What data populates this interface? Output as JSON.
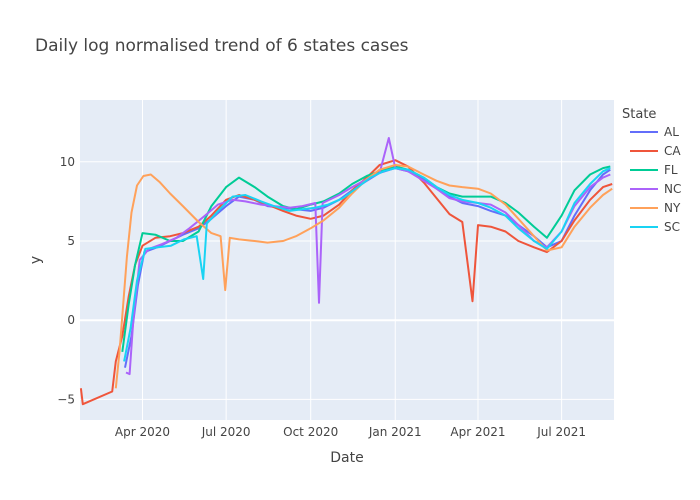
{
  "chart_data": {
    "type": "line",
    "title": "Daily log normalised trend of 6 states cases",
    "xlabel": "Date",
    "ylabel": "y",
    "x_range": [
      "2020-01-24",
      "2021-08-27"
    ],
    "ylim": [
      -6.3,
      13.9
    ],
    "x_ticks": [
      {
        "date": "2020-04-01",
        "label": "Apr 2020"
      },
      {
        "date": "2020-07-01",
        "label": "Jul 2020"
      },
      {
        "date": "2020-10-01",
        "label": "Oct 2020"
      },
      {
        "date": "2021-01-01",
        "label": "Jan 2021"
      },
      {
        "date": "2021-04-01",
        "label": "Apr 2021"
      },
      {
        "date": "2021-07-01",
        "label": "Jul 2021"
      }
    ],
    "y_ticks": [
      {
        "value": -5,
        "label": "−5"
      },
      {
        "value": 0,
        "label": "0"
      },
      {
        "value": 5,
        "label": "5"
      },
      {
        "value": 10,
        "label": "10"
      }
    ],
    "grid": true,
    "legend": {
      "title": "State",
      "position": "right"
    },
    "series": [
      {
        "name": "AL",
        "color": "#636efa",
        "points": [
          [
            "2020-03-13",
            -3.0
          ],
          [
            "2020-03-20",
            -1.0
          ],
          [
            "2020-03-27",
            2.2
          ],
          [
            "2020-04-03",
            4.3
          ],
          [
            "2020-04-17",
            4.6
          ],
          [
            "2020-05-01",
            5.0
          ],
          [
            "2020-05-15",
            5.4
          ],
          [
            "2020-06-01",
            5.8
          ],
          [
            "2020-06-15",
            6.4
          ],
          [
            "2020-07-01",
            7.2
          ],
          [
            "2020-07-15",
            7.8
          ],
          [
            "2020-08-01",
            7.6
          ],
          [
            "2020-08-15",
            7.2
          ],
          [
            "2020-09-01",
            7.1
          ],
          [
            "2020-09-15",
            7.0
          ],
          [
            "2020-10-01",
            6.9
          ],
          [
            "2020-10-15",
            7.1
          ],
          [
            "2020-11-01",
            7.6
          ],
          [
            "2020-11-15",
            8.2
          ],
          [
            "2020-12-01",
            8.8
          ],
          [
            "2020-12-15",
            9.3
          ],
          [
            "2021-01-01",
            9.6
          ],
          [
            "2021-01-15",
            9.4
          ],
          [
            "2021-02-01",
            8.9
          ],
          [
            "2021-02-15",
            8.3
          ],
          [
            "2021-03-01",
            7.8
          ],
          [
            "2021-03-15",
            7.4
          ],
          [
            "2021-04-01",
            7.2
          ],
          [
            "2021-04-15",
            6.9
          ],
          [
            "2021-05-01",
            6.6
          ],
          [
            "2021-05-15",
            6.0
          ],
          [
            "2021-06-01",
            5.3
          ],
          [
            "2021-06-15",
            4.6
          ],
          [
            "2021-07-01",
            5.0
          ],
          [
            "2021-07-15",
            6.6
          ],
          [
            "2021-08-01",
            8.2
          ],
          [
            "2021-08-15",
            9.2
          ],
          [
            "2021-08-23",
            9.5
          ]
        ]
      },
      {
        "name": "CA",
        "color": "#ef553b",
        "points": [
          [
            "2020-01-25",
            -4.3
          ],
          [
            "2020-01-27",
            -5.3
          ],
          [
            "2020-02-28",
            -4.5
          ],
          [
            "2020-03-03",
            -2.6
          ],
          [
            "2020-03-10",
            -1.0
          ],
          [
            "2020-03-17",
            1.5
          ],
          [
            "2020-03-24",
            3.5
          ],
          [
            "2020-04-01",
            4.7
          ],
          [
            "2020-04-15",
            5.2
          ],
          [
            "2020-05-01",
            5.3
          ],
          [
            "2020-05-15",
            5.5
          ],
          [
            "2020-06-01",
            5.9
          ],
          [
            "2020-06-15",
            6.6
          ],
          [
            "2020-07-01",
            7.6
          ],
          [
            "2020-07-15",
            7.9
          ],
          [
            "2020-08-01",
            7.6
          ],
          [
            "2020-08-15",
            7.3
          ],
          [
            "2020-09-01",
            6.9
          ],
          [
            "2020-09-15",
            6.6
          ],
          [
            "2020-10-01",
            6.4
          ],
          [
            "2020-10-15",
            6.6
          ],
          [
            "2020-11-01",
            7.3
          ],
          [
            "2020-11-15",
            8.2
          ],
          [
            "2020-12-01",
            9.0
          ],
          [
            "2020-12-15",
            9.8
          ],
          [
            "2021-01-01",
            10.1
          ],
          [
            "2021-01-15",
            9.7
          ],
          [
            "2021-02-01",
            8.7
          ],
          [
            "2021-02-15",
            7.7
          ],
          [
            "2021-03-01",
            6.7
          ],
          [
            "2021-03-15",
            6.2
          ],
          [
            "2021-03-26",
            1.2
          ],
          [
            "2021-04-01",
            6.0
          ],
          [
            "2021-04-15",
            5.9
          ],
          [
            "2021-05-01",
            5.6
          ],
          [
            "2021-05-15",
            5.0
          ],
          [
            "2021-06-01",
            4.6
          ],
          [
            "2021-06-15",
            4.3
          ],
          [
            "2021-07-01",
            5.0
          ],
          [
            "2021-07-15",
            6.3
          ],
          [
            "2021-08-01",
            7.6
          ],
          [
            "2021-08-15",
            8.4
          ],
          [
            "2021-08-25",
            8.6
          ]
        ]
      },
      {
        "name": "FL",
        "color": "#00cc96",
        "points": [
          [
            "2020-03-10",
            -2.0
          ],
          [
            "2020-03-17",
            1.0
          ],
          [
            "2020-03-24",
            3.5
          ],
          [
            "2020-04-01",
            5.5
          ],
          [
            "2020-04-15",
            5.4
          ],
          [
            "2020-05-01",
            5.0
          ],
          [
            "2020-05-15",
            5.0
          ],
          [
            "2020-06-01",
            5.6
          ],
          [
            "2020-06-15",
            7.2
          ],
          [
            "2020-07-01",
            8.4
          ],
          [
            "2020-07-15",
            9.0
          ],
          [
            "2020-08-01",
            8.4
          ],
          [
            "2020-08-15",
            7.8
          ],
          [
            "2020-09-01",
            7.2
          ],
          [
            "2020-09-15",
            7.0
          ],
          [
            "2020-10-01",
            7.3
          ],
          [
            "2020-10-15",
            7.5
          ],
          [
            "2020-11-01",
            8.0
          ],
          [
            "2020-11-15",
            8.6
          ],
          [
            "2020-12-01",
            9.1
          ],
          [
            "2020-12-15",
            9.4
          ],
          [
            "2021-01-01",
            9.7
          ],
          [
            "2021-01-15",
            9.5
          ],
          [
            "2021-02-01",
            9.0
          ],
          [
            "2021-02-15",
            8.4
          ],
          [
            "2021-03-01",
            8.0
          ],
          [
            "2021-03-15",
            7.8
          ],
          [
            "2021-04-01",
            7.8
          ],
          [
            "2021-04-15",
            7.8
          ],
          [
            "2021-05-01",
            7.4
          ],
          [
            "2021-05-15",
            6.8
          ],
          [
            "2021-06-01",
            5.9
          ],
          [
            "2021-06-15",
            5.2
          ],
          [
            "2021-07-01",
            6.6
          ],
          [
            "2021-07-15",
            8.2
          ],
          [
            "2021-08-01",
            9.2
          ],
          [
            "2021-08-15",
            9.6
          ],
          [
            "2021-08-23",
            9.7
          ]
        ]
      },
      {
        "name": "NC",
        "color": "#ab63fa",
        "points": [
          [
            "2020-03-14",
            -3.3
          ],
          [
            "2020-03-18",
            -3.4
          ],
          [
            "2020-03-22",
            0.0
          ],
          [
            "2020-03-29",
            3.8
          ],
          [
            "2020-04-08",
            4.5
          ],
          [
            "2020-04-22",
            4.8
          ],
          [
            "2020-05-08",
            5.2
          ],
          [
            "2020-05-22",
            5.8
          ],
          [
            "2020-06-08",
            6.6
          ],
          [
            "2020-06-22",
            7.3
          ],
          [
            "2020-07-08",
            7.6
          ],
          [
            "2020-07-22",
            7.5
          ],
          [
            "2020-08-08",
            7.3
          ],
          [
            "2020-08-22",
            7.2
          ],
          [
            "2020-09-08",
            7.1
          ],
          [
            "2020-09-22",
            7.2
          ],
          [
            "2020-10-06",
            7.4
          ],
          [
            "2020-10-10",
            1.1
          ],
          [
            "2020-10-14",
            7.4
          ],
          [
            "2020-11-01",
            7.9
          ],
          [
            "2020-11-15",
            8.4
          ],
          [
            "2020-12-01",
            8.9
          ],
          [
            "2020-12-15",
            9.3
          ],
          [
            "2020-12-25",
            11.5
          ],
          [
            "2021-01-01",
            9.6
          ],
          [
            "2021-01-15",
            9.4
          ],
          [
            "2021-02-01",
            8.8
          ],
          [
            "2021-02-15",
            8.3
          ],
          [
            "2021-03-01",
            7.7
          ],
          [
            "2021-03-15",
            7.5
          ],
          [
            "2021-04-01",
            7.4
          ],
          [
            "2021-04-15",
            7.3
          ],
          [
            "2021-05-01",
            6.8
          ],
          [
            "2021-05-15",
            6.0
          ],
          [
            "2021-06-01",
            5.0
          ],
          [
            "2021-06-15",
            4.6
          ],
          [
            "2021-07-01",
            5.6
          ],
          [
            "2021-07-15",
            7.2
          ],
          [
            "2021-08-01",
            8.4
          ],
          [
            "2021-08-15",
            9.0
          ],
          [
            "2021-08-23",
            9.2
          ]
        ]
      },
      {
        "name": "NY",
        "color": "#ffa15a",
        "points": [
          [
            "2020-03-03",
            -4.3
          ],
          [
            "2020-03-07",
            -2.0
          ],
          [
            "2020-03-11",
            1.0
          ],
          [
            "2020-03-15",
            4.0
          ],
          [
            "2020-03-20",
            6.8
          ],
          [
            "2020-03-26",
            8.5
          ],
          [
            "2020-04-02",
            9.1
          ],
          [
            "2020-04-10",
            9.2
          ],
          [
            "2020-04-20",
            8.7
          ],
          [
            "2020-05-01",
            8.0
          ],
          [
            "2020-05-15",
            7.2
          ],
          [
            "2020-06-01",
            6.2
          ],
          [
            "2020-06-15",
            5.5
          ],
          [
            "2020-06-25",
            5.3
          ],
          [
            "2020-06-30",
            1.9
          ],
          [
            "2020-07-05",
            5.2
          ],
          [
            "2020-07-15",
            5.1
          ],
          [
            "2020-08-01",
            5.0
          ],
          [
            "2020-08-15",
            4.9
          ],
          [
            "2020-09-01",
            5.0
          ],
          [
            "2020-09-15",
            5.3
          ],
          [
            "2020-10-01",
            5.8
          ],
          [
            "2020-10-15",
            6.3
          ],
          [
            "2020-11-01",
            7.1
          ],
          [
            "2020-11-15",
            8.0
          ],
          [
            "2020-12-01",
            8.9
          ],
          [
            "2020-12-15",
            9.5
          ],
          [
            "2021-01-01",
            9.8
          ],
          [
            "2021-01-15",
            9.7
          ],
          [
            "2021-02-01",
            9.2
          ],
          [
            "2021-02-15",
            8.8
          ],
          [
            "2021-03-01",
            8.5
          ],
          [
            "2021-03-15",
            8.4
          ],
          [
            "2021-04-01",
            8.3
          ],
          [
            "2021-04-15",
            8.0
          ],
          [
            "2021-05-01",
            7.3
          ],
          [
            "2021-05-15",
            6.4
          ],
          [
            "2021-06-01",
            5.3
          ],
          [
            "2021-06-15",
            4.4
          ],
          [
            "2021-07-01",
            4.6
          ],
          [
            "2021-07-15",
            5.9
          ],
          [
            "2021-08-01",
            7.1
          ],
          [
            "2021-08-15",
            7.9
          ],
          [
            "2021-08-25",
            8.3
          ]
        ]
      },
      {
        "name": "SC",
        "color": "#19d3f3",
        "points": [
          [
            "2020-03-12",
            -2.6
          ],
          [
            "2020-03-19",
            -0.5
          ],
          [
            "2020-03-26",
            2.5
          ],
          [
            "2020-04-04",
            4.5
          ],
          [
            "2020-04-18",
            4.6
          ],
          [
            "2020-05-02",
            4.7
          ],
          [
            "2020-05-16",
            5.1
          ],
          [
            "2020-05-30",
            5.3
          ],
          [
            "2020-06-06",
            2.6
          ],
          [
            "2020-06-10",
            6.1
          ],
          [
            "2020-06-24",
            7.0
          ],
          [
            "2020-07-08",
            7.8
          ],
          [
            "2020-07-22",
            7.9
          ],
          [
            "2020-08-08",
            7.5
          ],
          [
            "2020-08-22",
            7.2
          ],
          [
            "2020-09-08",
            6.9
          ],
          [
            "2020-09-22",
            7.0
          ],
          [
            "2020-10-06",
            7.1
          ],
          [
            "2020-10-20",
            7.3
          ],
          [
            "2020-11-05",
            7.7
          ],
          [
            "2020-11-19",
            8.3
          ],
          [
            "2020-12-05",
            9.0
          ],
          [
            "2020-12-19",
            9.4
          ],
          [
            "2021-01-01",
            9.6
          ],
          [
            "2021-01-15",
            9.5
          ],
          [
            "2021-02-01",
            9.0
          ],
          [
            "2021-02-15",
            8.4
          ],
          [
            "2021-03-01",
            7.9
          ],
          [
            "2021-03-15",
            7.6
          ],
          [
            "2021-04-01",
            7.4
          ],
          [
            "2021-04-15",
            7.1
          ],
          [
            "2021-05-01",
            6.6
          ],
          [
            "2021-05-15",
            5.8
          ],
          [
            "2021-06-01",
            5.0
          ],
          [
            "2021-06-15",
            4.5
          ],
          [
            "2021-07-01",
            5.6
          ],
          [
            "2021-07-15",
            7.4
          ],
          [
            "2021-08-01",
            8.6
          ],
          [
            "2021-08-15",
            9.4
          ],
          [
            "2021-08-23",
            9.6
          ]
        ]
      }
    ]
  }
}
